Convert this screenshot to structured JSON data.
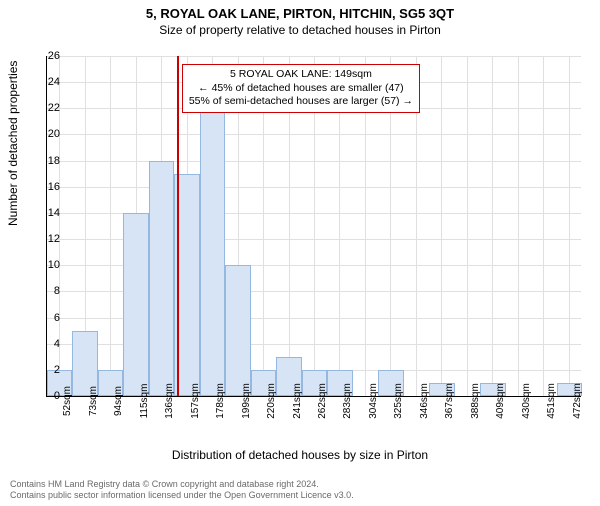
{
  "title": "5, ROYAL OAK LANE, PIRTON, HITCHIN, SG5 3QT",
  "subtitle": "Size of property relative to detached houses in Pirton",
  "ylabel": "Number of detached properties",
  "xlabel": "Distribution of detached houses by size in Pirton",
  "chart": {
    "type": "histogram",
    "background_color": "#ffffff",
    "grid_color": "#e0e0e0",
    "bar_fill": "#d6e4f5",
    "bar_border": "#94b8e0",
    "marker_color": "#cc0000",
    "marker_value": 149,
    "ylim": [
      0,
      26
    ],
    "ytick_step": 2,
    "xlim": [
      42,
      482
    ],
    "xtick_start": 52,
    "xtick_step": 21,
    "xtick_suffix": "sqm",
    "bin_width": 21,
    "bins": [
      {
        "start": 42,
        "count": 2
      },
      {
        "start": 63,
        "count": 5
      },
      {
        "start": 84,
        "count": 2
      },
      {
        "start": 105,
        "count": 14
      },
      {
        "start": 126,
        "count": 18
      },
      {
        "start": 147,
        "count": 17
      },
      {
        "start": 168,
        "count": 22
      },
      {
        "start": 189,
        "count": 10
      },
      {
        "start": 210,
        "count": 2
      },
      {
        "start": 231,
        "count": 3
      },
      {
        "start": 252,
        "count": 2
      },
      {
        "start": 273,
        "count": 2
      },
      {
        "start": 294,
        "count": 0
      },
      {
        "start": 315,
        "count": 2
      },
      {
        "start": 336,
        "count": 0
      },
      {
        "start": 357,
        "count": 1
      },
      {
        "start": 378,
        "count": 0
      },
      {
        "start": 399,
        "count": 1
      },
      {
        "start": 420,
        "count": 0
      },
      {
        "start": 441,
        "count": 0
      },
      {
        "start": 462,
        "count": 1
      }
    ]
  },
  "annotation": {
    "line1": "5 ROYAL OAK LANE: 149sqm",
    "line2": "← 45% of detached houses are smaller (47)",
    "line3": "55% of semi-detached houses are larger (57) →"
  },
  "footer": {
    "line1": "Contains HM Land Registry data © Crown copyright and database right 2024.",
    "line2": "Contains public sector information licensed under the Open Government Licence v3.0."
  },
  "style": {
    "title_fontsize": 13,
    "subtitle_fontsize": 12,
    "label_fontsize": 12,
    "tick_fontsize": 11,
    "footer_color": "#6a6a6a"
  }
}
